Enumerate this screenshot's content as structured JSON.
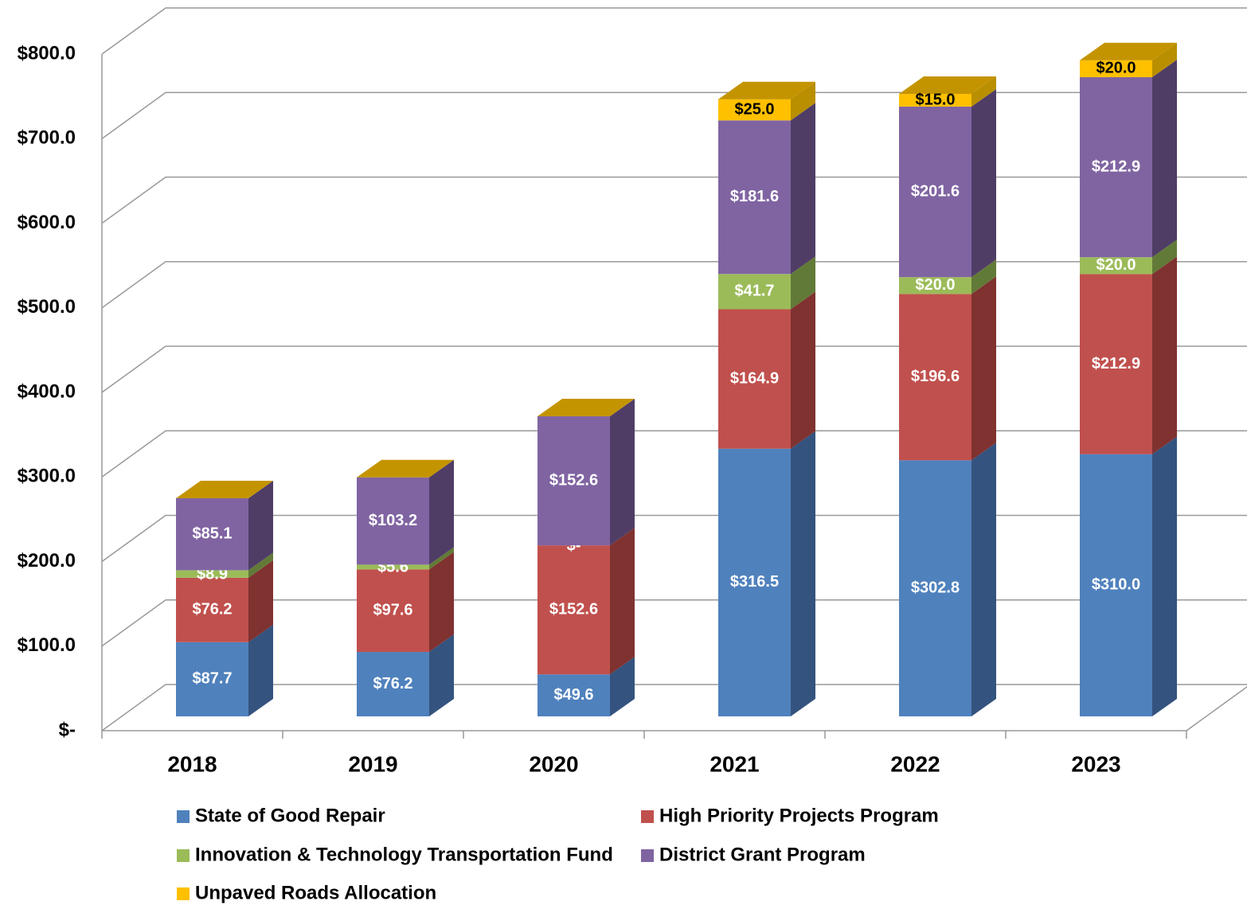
{
  "chart_data": {
    "type": "bar3d_stacked",
    "categories": [
      "2018",
      "2019",
      "2020",
      "2021",
      "2022",
      "2023"
    ],
    "series": [
      {
        "name": "State of Good Repair",
        "color": "#4f81bd",
        "side": "#34537e",
        "label_color": "#ffffff",
        "values": [
          87.7,
          76.2,
          49.6,
          316.5,
          302.8,
          310.0
        ],
        "value_labels": [
          "$87.7",
          "$76.2",
          "$49.6",
          "$316.5",
          "$302.8",
          "$310.0"
        ]
      },
      {
        "name": "High Priority Projects Program",
        "color": "#c0504d",
        "side": "#7f3230",
        "label_color": "#ffffff",
        "values": [
          76.2,
          97.6,
          152.6,
          164.9,
          196.6,
          212.9
        ],
        "value_labels": [
          "$76.2",
          "$97.6",
          "$152.6",
          "$164.9",
          "$196.6",
          "$212.9"
        ]
      },
      {
        "name": "Innovation & Technology Transportation Fund",
        "color": "#9bbb59",
        "side": "#627a37",
        "label_color": "#ffffff",
        "values": [
          8.9,
          5.6,
          0,
          41.7,
          20.0,
          20.0
        ],
        "value_labels": [
          "$8.9",
          "$5.6",
          "$-",
          "$41.7",
          "$20.0",
          "$20.0"
        ]
      },
      {
        "name": "District Grant Program",
        "color": "#8064a2",
        "side": "#4f3d66",
        "label_color": "#ffffff",
        "values": [
          85.1,
          103.2,
          152.6,
          181.6,
          201.6,
          212.9
        ],
        "value_labels": [
          "$85.1",
          "$103.2",
          "$152.6",
          "$181.6",
          "$201.6",
          "$212.9"
        ]
      },
      {
        "name": "Unpaved Roads Allocation",
        "color": "#ffc000",
        "side": "#b98f00",
        "top": "#c49400",
        "label_color": "#000000",
        "values": [
          0,
          0,
          0,
          25.0,
          15.0,
          20.0
        ],
        "value_labels": [
          null,
          null,
          null,
          "$25.0",
          "$15.0",
          "$20.0"
        ]
      }
    ],
    "ylim": [
      0,
      800
    ],
    "yticks": [
      {
        "value": 0,
        "label": "$-"
      },
      {
        "value": 100,
        "label": "$100.0"
      },
      {
        "value": 200,
        "label": "$200.0"
      },
      {
        "value": 300,
        "label": "$300.0"
      },
      {
        "value": 400,
        "label": "$400.0"
      },
      {
        "value": 500,
        "label": "$500.0"
      },
      {
        "value": 600,
        "label": "$600.0"
      },
      {
        "value": 700,
        "label": "$700.0"
      },
      {
        "value": 800,
        "label": "$800.0"
      }
    ],
    "grid": true,
    "legend": "bottom"
  }
}
